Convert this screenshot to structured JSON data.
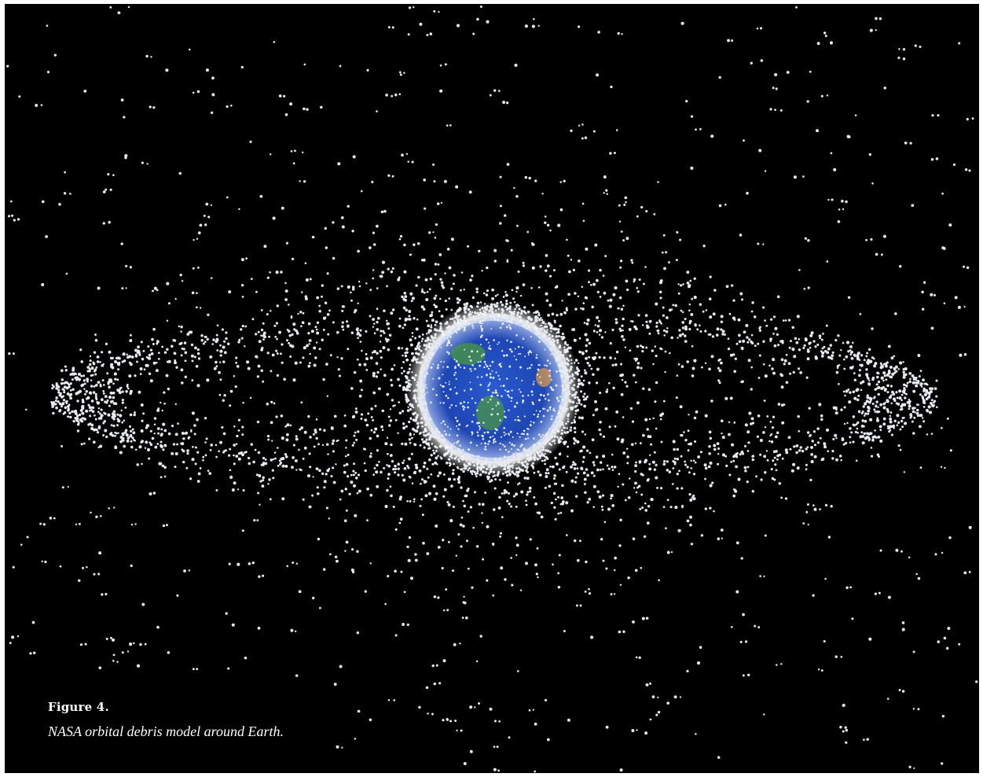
{
  "figure": {
    "title": "Figure 4.",
    "caption": "NASA orbital debris model around Earth."
  },
  "image": {
    "background_color": "#000000",
    "debris_color": "#e8ecf2",
    "earth_ocean_color": "#1e46b4",
    "earth_land_color": "#4a9a3c"
  }
}
